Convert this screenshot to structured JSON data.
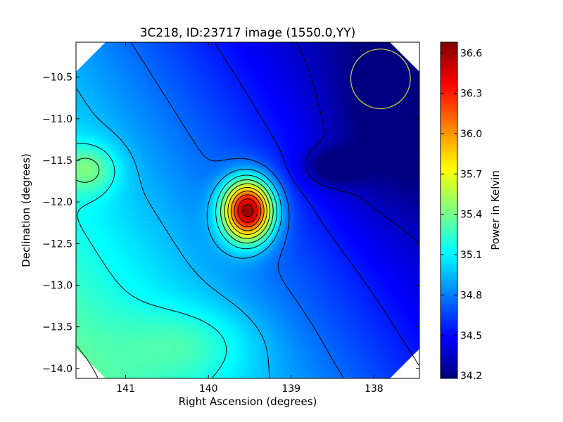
{
  "chart_data": {
    "type": "heatmap",
    "title": "3C218, ID:23717 image (1550.0,YY)",
    "xlabel": "Right Ascension (degrees)",
    "ylabel": "Declination (degrees)",
    "x_range": [
      141.6,
      137.45
    ],
    "y_range": [
      -14.12,
      -10.08
    ],
    "x_axis_inverted": true,
    "x_ticks": [
      141,
      140,
      139,
      138
    ],
    "x_tick_labels": [
      "141",
      "140",
      "139",
      "138"
    ],
    "y_ticks": [
      -10.5,
      -11.0,
      -11.5,
      -12.0,
      -12.5,
      -13.0,
      -13.5,
      -14.0
    ],
    "y_tick_labels": [
      "−10.5",
      "−11.0",
      "−11.5",
      "−12.0",
      "−12.5",
      "−13.0",
      "−13.5",
      "−14.0"
    ],
    "colormap": "jet",
    "colorbar": {
      "label": "Power in Kelvin",
      "range": [
        34.18,
        36.68
      ],
      "ticks": [
        36.6,
        36.3,
        36.0,
        35.7,
        35.4,
        35.1,
        34.8,
        34.5,
        34.2
      ],
      "tick_labels": [
        "36.6",
        "36.3",
        "36.0",
        "35.7",
        "35.4",
        "35.1",
        "34.8",
        "34.5",
        "34.2"
      ]
    },
    "peak": {
      "ra": 139.52,
      "dec": -12.1,
      "value": 36.68
    },
    "local_minimum": {
      "ra": 138.5,
      "dec": -11.58,
      "value": 34.25
    },
    "contour_color": "#000000",
    "beam_circle": {
      "ra": 137.92,
      "dec": -10.52,
      "radius_deg": 0.36,
      "color": "#c8c83a"
    },
    "grid": false,
    "legend": "none"
  }
}
